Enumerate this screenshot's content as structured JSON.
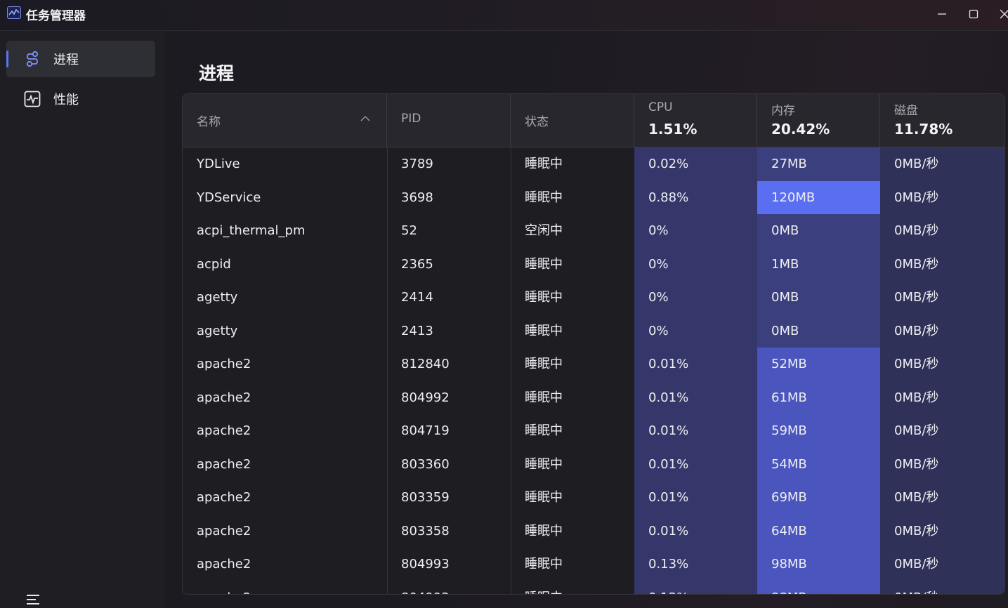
{
  "window": {
    "title": "任务管理器",
    "minimize_icon": "minimize-icon",
    "maximize_icon": "maximize-icon",
    "close_icon": "close-icon"
  },
  "sidebar": {
    "items": [
      {
        "label": "进程",
        "icon": "process-icon",
        "active": true
      },
      {
        "label": "性能",
        "icon": "performance-icon",
        "active": false
      }
    ],
    "menu_icon": "hamburger-menu-icon"
  },
  "main": {
    "title": "进程",
    "columns": {
      "name": "名称",
      "pid": "PID",
      "state": "状态",
      "cpu": {
        "label": "CPU",
        "total": "1.51%"
      },
      "memory": {
        "label": "内存",
        "total": "20.42%"
      },
      "disk": {
        "label": "磁盘",
        "total": "11.78%"
      }
    },
    "rows": [
      {
        "name": "YDLive",
        "pid": "3789",
        "state": "睡眠中",
        "cpu": "0.02%",
        "mem": "27MB",
        "disk": "0MB/秒"
      },
      {
        "name": "YDService",
        "pid": "3698",
        "state": "睡眠中",
        "cpu": "0.88%",
        "mem": "120MB",
        "disk": "0MB/秒"
      },
      {
        "name": "acpi_thermal_pm",
        "pid": "52",
        "state": "空闲中",
        "cpu": "0%",
        "mem": "0MB",
        "disk": "0MB/秒"
      },
      {
        "name": "acpid",
        "pid": "2365",
        "state": "睡眠中",
        "cpu": "0%",
        "mem": "1MB",
        "disk": "0MB/秒"
      },
      {
        "name": "agetty",
        "pid": "2414",
        "state": "睡眠中",
        "cpu": "0%",
        "mem": "0MB",
        "disk": "0MB/秒"
      },
      {
        "name": "agetty",
        "pid": "2413",
        "state": "睡眠中",
        "cpu": "0%",
        "mem": "0MB",
        "disk": "0MB/秒"
      },
      {
        "name": "apache2",
        "pid": "812840",
        "state": "睡眠中",
        "cpu": "0.01%",
        "mem": "52MB",
        "disk": "0MB/秒"
      },
      {
        "name": "apache2",
        "pid": "804992",
        "state": "睡眠中",
        "cpu": "0.01%",
        "mem": "61MB",
        "disk": "0MB/秒"
      },
      {
        "name": "apache2",
        "pid": "804719",
        "state": "睡眠中",
        "cpu": "0.01%",
        "mem": "59MB",
        "disk": "0MB/秒"
      },
      {
        "name": "apache2",
        "pid": "803360",
        "state": "睡眠中",
        "cpu": "0.01%",
        "mem": "54MB",
        "disk": "0MB/秒"
      },
      {
        "name": "apache2",
        "pid": "803359",
        "state": "睡眠中",
        "cpu": "0.01%",
        "mem": "69MB",
        "disk": "0MB/秒"
      },
      {
        "name": "apache2",
        "pid": "803358",
        "state": "睡眠中",
        "cpu": "0.01%",
        "mem": "64MB",
        "disk": "0MB/秒"
      },
      {
        "name": "apache2",
        "pid": "804993",
        "state": "睡眠中",
        "cpu": "0.13%",
        "mem": "98MB",
        "disk": "0MB/秒"
      }
    ]
  },
  "colors": {
    "accent": "#5d74f6",
    "cpu_column": "#35376a",
    "disk_column": "#2f3159",
    "mem_low": "#3b3f7e",
    "mem_mid": "#4a56bd",
    "mem_high": "#5a6ef2"
  }
}
